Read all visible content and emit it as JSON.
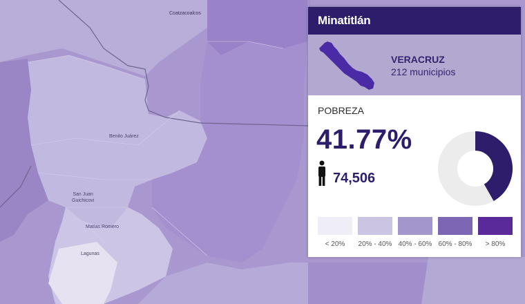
{
  "map": {
    "place_labels": {
      "coatzacoalcos": "Coatzacoalcos",
      "benito_juarez": "Benito Juárez",
      "san_juan_guichicovi": "San Juan\nGuichicovi",
      "matias_romero": "Matías Romero",
      "lagunas": "Lagunas"
    }
  },
  "panel": {
    "municipality": "Minatitlán",
    "state": {
      "name": "VERACRUZ",
      "count": "212 municipios",
      "shape_icon": "veracruz-state-silhouette"
    },
    "indicator": {
      "label": "POBREZA",
      "value_text": "41.77%",
      "value_fraction": 0.4177,
      "people_icon": "person-icon",
      "people": "74,506"
    },
    "legend": [
      {
        "label": "< 20%",
        "color": "#efedf5"
      },
      {
        "label": "20% - 40%",
        "color": "#cbc5e3"
      },
      {
        "label": "40% - 60%",
        "color": "#a396cc"
      },
      {
        "label": "60% - 80%",
        "color": "#7c67b4"
      },
      {
        "label": "> 80%",
        "color": "#5a2a9a"
      }
    ],
    "colors": {
      "header": "#2e1d6a",
      "donut_fill": "#2e1d6a",
      "donut_track": "#ececec"
    }
  }
}
